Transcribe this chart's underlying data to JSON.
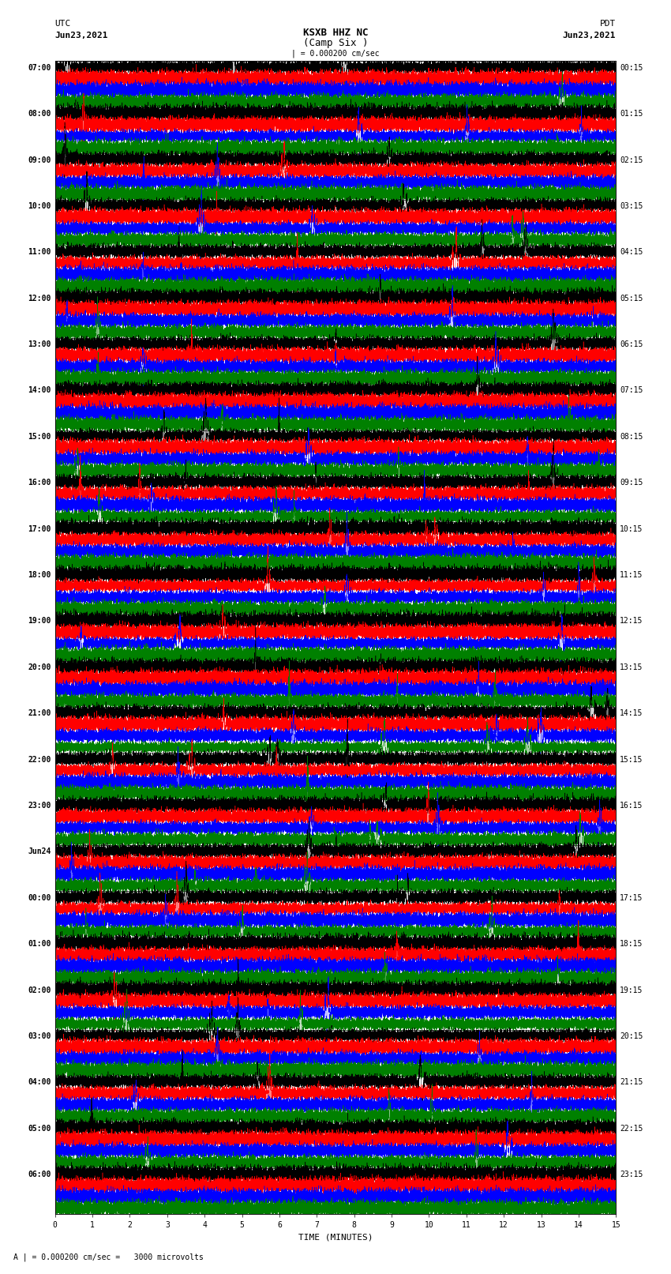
{
  "title_line1": "KSXB HHZ NC",
  "title_line2": "(Camp Six )",
  "scale_label": "| = 0.000200 cm/sec",
  "footer_label": "A | = 0.000200 cm/sec =   3000 microvolts",
  "utc_label": "UTC",
  "utc_date": "Jun23,2021",
  "pdt_label": "PDT",
  "pdt_date": "Jun23,2021",
  "xlabel": "TIME (MINUTES)",
  "left_times": [
    "07:00",
    "08:00",
    "09:00",
    "10:00",
    "11:00",
    "12:00",
    "13:00",
    "14:00",
    "15:00",
    "16:00",
    "17:00",
    "18:00",
    "19:00",
    "20:00",
    "21:00",
    "22:00",
    "23:00",
    "Jun24",
    "00:00",
    "01:00",
    "02:00",
    "03:00",
    "04:00",
    "05:00",
    "06:00"
  ],
  "right_times": [
    "00:15",
    "01:15",
    "02:15",
    "03:15",
    "04:15",
    "05:15",
    "06:15",
    "07:15",
    "08:15",
    "09:15",
    "10:15",
    "11:15",
    "12:15",
    "13:15",
    "14:15",
    "15:15",
    "16:15",
    "",
    "17:15",
    "18:15",
    "19:15",
    "20:15",
    "21:15",
    "22:15",
    "23:15"
  ],
  "colors": [
    "black",
    "red",
    "blue",
    "green"
  ],
  "n_rows": 25,
  "n_traces_per_row": 4,
  "duration_minutes": 15,
  "sample_rate": 50,
  "background_color": "white",
  "line_width": 0.35,
  "amplitude_scale": 0.28,
  "fig_width": 8.5,
  "fig_height": 16.13
}
